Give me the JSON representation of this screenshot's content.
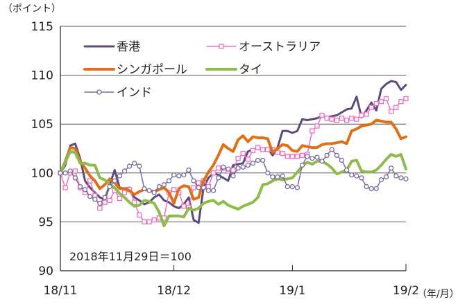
{
  "chart_data": {
    "type": "line",
    "yunit": "（ポイント）",
    "xunit": "（年/月）",
    "ylim": [
      90,
      115
    ],
    "yticks": [
      90,
      95,
      100,
      105,
      110,
      115
    ],
    "xlim": [
      0,
      70
    ],
    "xticks": [
      {
        "x": 0,
        "label": "18/11"
      },
      {
        "x": 23,
        "label": "18/12"
      },
      {
        "x": 47,
        "label": "19/1"
      },
      {
        "x": 70,
        "label": "19/2"
      }
    ],
    "grid": "horizontal",
    "annotation": "2018年11月29日＝100",
    "series": [
      {
        "name": "香港",
        "color": "#5b4a7a",
        "width": 3,
        "marker": "none",
        "values": [
          100,
          100.8,
          102.8,
          103,
          101.5,
          99.2,
          98.5,
          98,
          97.5,
          97.3,
          98.8,
          100.3,
          98.5,
          98.4,
          98.5,
          97.5,
          97.2,
          96.8,
          97,
          97.5,
          97.8,
          97.2,
          97,
          96.6,
          96.4,
          96.8,
          97.5,
          95.2,
          94.9,
          98.5,
          99.5,
          100,
          99.8,
          99.5,
          99.2,
          100.8,
          100.9,
          101,
          102.2,
          102.4,
          102.5,
          102.5,
          102.5,
          101.8,
          102.6,
          104.3,
          104.3,
          104.1,
          104.3,
          105.5,
          105.4,
          105.5,
          105.6,
          105.8,
          105.7,
          105.8,
          105.9,
          106.2,
          106.5,
          106.6,
          107.8,
          105.7,
          106.4,
          107.2,
          106.4,
          108.6,
          109.1,
          109.4,
          109.3,
          108.5,
          109
        ]
      },
      {
        "name": "オーストラリア",
        "color": "#ee6ec2",
        "width": 1.5,
        "marker": "square",
        "values": [
          100,
          98.5,
          100,
          100.2,
          98.5,
          98,
          99.2,
          97.7,
          96.4,
          97,
          97.2,
          98.2,
          97.4,
          98,
          98.3,
          97,
          95.7,
          95,
          95,
          95.2,
          95.4,
          95.4,
          98,
          98.3,
          98,
          96.6,
          96.5,
          98.5,
          99,
          99.2,
          98.6,
          100,
          100.5,
          100.5,
          100.2,
          100.3,
          101.5,
          102,
          101.4,
          102.3,
          102.6,
          102.4,
          102.4,
          102.4,
          102.1,
          102,
          101.7,
          101.7,
          101.7,
          101.8,
          101.9,
          104.3,
          104.8,
          105.9,
          105.6,
          105.5,
          105.4,
          105.6,
          105.4,
          105.6,
          105.5,
          105.9,
          106,
          106.7,
          107.1,
          107.3,
          107.6,
          106.3,
          106.7,
          107.3,
          107.6
        ]
      },
      {
        "name": "シンガポール",
        "color": "#e07018",
        "width": 4,
        "marker": "none",
        "values": [
          100,
          101.2,
          102.6,
          102.5,
          101.2,
          100.5,
          99.7,
          99.2,
          98.4,
          98.8,
          99.4,
          99,
          98.4,
          98.4,
          98.2,
          97.8,
          98.1,
          98.3,
          98.2,
          98.1,
          98.3,
          98.5,
          98,
          96.9,
          98.4,
          98.7,
          98.6,
          97.3,
          97.5,
          99.2,
          100.1,
          100.8,
          101.8,
          102.9,
          102.5,
          102.2,
          103.4,
          103.8,
          103.2,
          103.7,
          103.6,
          103.6,
          103.5,
          102.1,
          102.5,
          102.9,
          102.8,
          102.3,
          102.2,
          102.8,
          102.7,
          102.6,
          102.6,
          102.9,
          103,
          103,
          103.1,
          103.2,
          103,
          104.3,
          104.5,
          104.8,
          104.9,
          105,
          105.4,
          105.3,
          105.2,
          105.2,
          104.5,
          103.5,
          103.7
        ]
      },
      {
        "name": "タイ",
        "color": "#8fba4c",
        "width": 4,
        "marker": "none",
        "values": [
          100,
          101.1,
          102.2,
          102.1,
          101,
          101,
          100.8,
          100.8,
          99.5,
          99.3,
          98.8,
          98.5,
          97.9,
          97.5,
          97,
          96.6,
          96.7,
          97.2,
          97.1,
          96.9,
          96,
          94.6,
          95.6,
          95.6,
          95.6,
          95.5,
          96.4,
          96.2,
          96.4,
          96.9,
          97.1,
          97.2,
          96.8,
          97.1,
          96.7,
          96.5,
          96.3,
          96.6,
          96.8,
          97,
          97.5,
          98.8,
          98.9,
          99.2,
          99.4,
          99.3,
          99.4,
          99.5,
          100.1,
          100.7,
          101.1,
          100.9,
          101.2,
          101.2,
          100.9,
          100.5,
          99.9,
          100.1,
          100.3,
          101.2,
          101.3,
          100.2,
          100.1,
          100.1,
          100.3,
          100.8,
          101.4,
          101.9,
          101.7,
          101.9,
          100.4
        ]
      },
      {
        "name": "インド",
        "color": "#7a6a9a",
        "width": 1.5,
        "marker": "circle",
        "values": [
          100,
          100,
          100.2,
          99.5,
          98.6,
          98.3,
          97.6,
          97.3,
          96.9,
          97.5,
          98.6,
          99.2,
          99.7,
          100.2,
          100.7,
          101,
          100.7,
          98.4,
          98.2,
          98,
          98.6,
          98.8,
          99.2,
          99.8,
          99.7,
          99.8,
          100.3,
          99.2,
          98.5,
          98.5,
          98.2,
          98.2,
          99.5,
          100.6,
          100.4,
          99.7,
          100.5,
          100.6,
          100.8,
          101,
          101.3,
          101.3,
          100,
          99.6,
          99.6,
          99.7,
          98.6,
          98.6,
          98.5,
          100.8,
          101.7,
          101.5,
          101.6,
          101.2,
          101.8,
          102.4,
          101.8,
          101.3,
          100.3,
          99.8,
          99.7,
          99.5,
          98.6,
          98.4,
          98.4,
          99.3,
          99.6,
          100.5,
          99.7,
          99.5,
          99.4
        ]
      }
    ],
    "legend": {
      "placement": "top-left",
      "entries": [
        {
          "name": "香港",
          "color": "#5b4a7a",
          "marker": "none"
        },
        {
          "name": "オーストラリア",
          "color": "#ee6ec2",
          "marker": "square"
        },
        {
          "name": "シンガポール",
          "color": "#e07018",
          "marker": "none"
        },
        {
          "name": "タイ",
          "color": "#8fba4c",
          "marker": "none"
        },
        {
          "name": "インド",
          "color": "#7a6a9a",
          "marker": "circle"
        }
      ]
    }
  }
}
